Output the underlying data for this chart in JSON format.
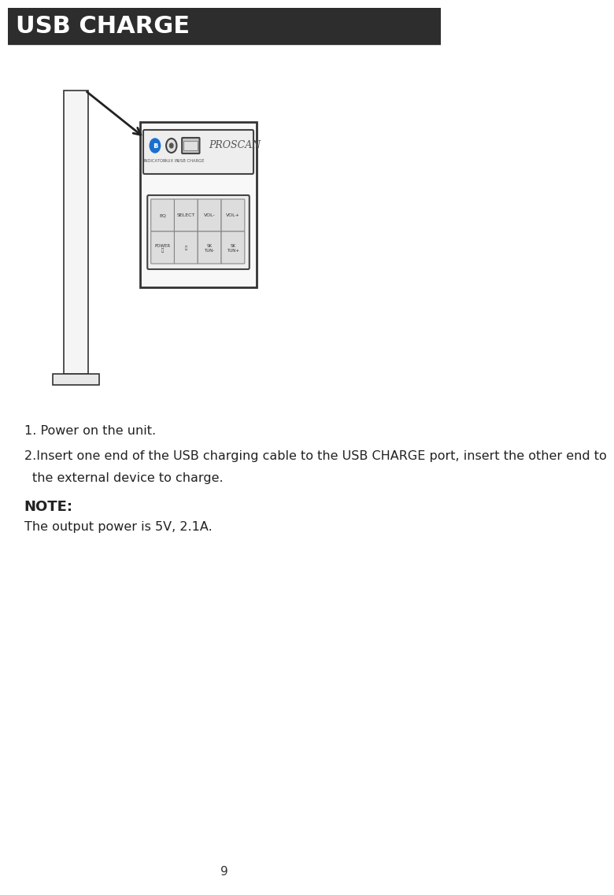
{
  "title": "USB CHARGE",
  "title_bg": "#2d2d2d",
  "title_color": "#ffffff",
  "title_fontsize": 22,
  "bg_color": "#ffffff",
  "step1": "1. Power on the unit.",
  "step2_line1": "2.Insert one end of the USB charging cable to the USB CHARGE port, insert the other end to",
  "step2_line2": "   the external device to charge.",
  "note_header": "NOTE:",
  "note_body": "The output power is 5V, 2.1A.",
  "page_number": "9",
  "text_fontsize": 11.5,
  "note_header_fontsize": 13
}
